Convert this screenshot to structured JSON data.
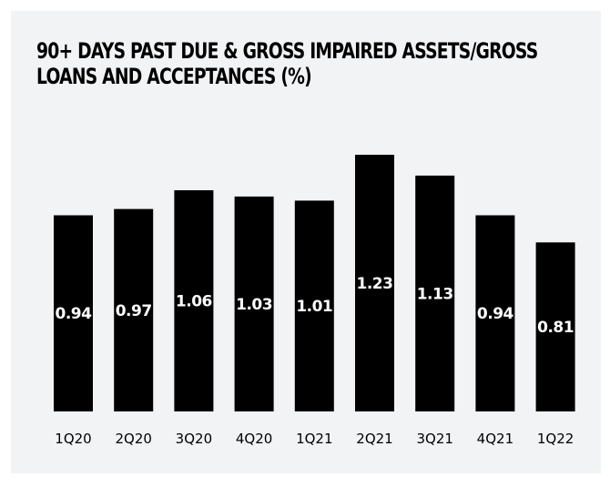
{
  "title": "90+ DAYS PAST DUE & GROSS IMPAIRED ASSETS/GROSS LOANS AND ACCEPTANCES (%)",
  "colors": {
    "bar": "#000000",
    "background": "#f2f3f5",
    "label": "#ffffff"
  },
  "chart_data": {
    "type": "bar",
    "title": "90+ DAYS PAST DUE & GROSS IMPAIRED ASSETS/GROSS LOANS AND ACCEPTANCES (%)",
    "categories": [
      "1Q20",
      "2Q20",
      "3Q20",
      "4Q20",
      "1Q21",
      "2Q21",
      "3Q21",
      "4Q21",
      "1Q22"
    ],
    "values": [
      0.94,
      0.97,
      1.06,
      1.03,
      1.01,
      1.23,
      1.13,
      0.94,
      0.81
    ],
    "labels": [
      "0.94",
      "0.97",
      "1.06",
      "1.03",
      "1.01",
      "1.23",
      "1.13",
      "0.94",
      "0.81"
    ],
    "xlabel": "",
    "ylabel": "",
    "ylim": [
      0,
      1.23
    ],
    "grid": false,
    "legend": "none",
    "data_labels": "inside-bar"
  }
}
